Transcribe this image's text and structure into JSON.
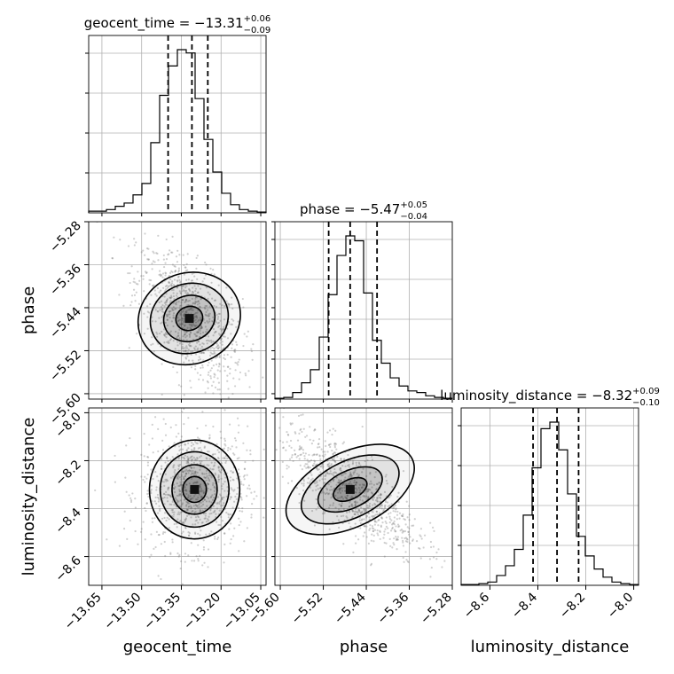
{
  "chart_data": {
    "type": "corner",
    "parameters": [
      {
        "name": "geocent_time",
        "label": "geocent_time",
        "title": "geocent_time = −13.31",
        "median": -13.31,
        "err_plus": "+0.06",
        "err_minus": "−0.09",
        "quantiles": [
          -13.4,
          -13.31,
          -13.25
        ],
        "range": [
          -13.7,
          -13.03
        ],
        "ticks": [
          -13.65,
          -13.5,
          -13.35,
          -13.2,
          -13.05
        ],
        "tick_labels": [
          "−13.65",
          "−13.50",
          "−13.35",
          "−13.20",
          "−13.05"
        ],
        "hist": [
          0.01,
          0.01,
          0.02,
          0.04,
          0.06,
          0.11,
          0.18,
          0.43,
          0.72,
          0.9,
          1.0,
          0.98,
          0.7,
          0.45,
          0.25,
          0.12,
          0.05,
          0.02,
          0.01,
          0.005
        ]
      },
      {
        "name": "phase",
        "label": "phase",
        "title": "phase = −5.47",
        "median": -5.47,
        "err_plus": "+0.05",
        "err_minus": "−0.04",
        "quantiles": [
          -5.51,
          -5.47,
          -5.42
        ],
        "range": [
          -5.61,
          -5.28
        ],
        "ticks": [
          -5.6,
          -5.52,
          -5.44,
          -5.36,
          -5.28
        ],
        "tick_labels": [
          "−5.60",
          "−5.52",
          "−5.44",
          "−5.36",
          "−5.28"
        ],
        "hist": [
          0.005,
          0.01,
          0.04,
          0.1,
          0.18,
          0.38,
          0.64,
          0.88,
          1.0,
          0.97,
          0.65,
          0.36,
          0.22,
          0.13,
          0.08,
          0.05,
          0.04,
          0.02,
          0.01,
          0.005
        ]
      },
      {
        "name": "luminosity_distance",
        "label": "luminosity_distance",
        "title": "luminosity_distance = −8.32",
        "median": -8.32,
        "err_plus": "+0.09",
        "err_minus": "−0.10",
        "quantiles": [
          -8.42,
          -8.32,
          -8.23
        ],
        "range": [
          -8.72,
          -7.98
        ],
        "ticks": [
          -8.6,
          -8.4,
          -8.2,
          -8.0
        ],
        "tick_labels": [
          "−8.6",
          "−8.4",
          "−8.2",
          "−8.0"
        ],
        "hist": [
          0.005,
          0.005,
          0.01,
          0.02,
          0.06,
          0.12,
          0.22,
          0.43,
          0.72,
          0.96,
          1.0,
          0.83,
          0.56,
          0.3,
          0.18,
          0.1,
          0.05,
          0.02,
          0.01,
          0.005
        ]
      }
    ],
    "joint": [
      {
        "x": "geocent_time",
        "y": "phase",
        "mean": [
          -13.32,
          -5.46
        ],
        "sd": [
          0.08,
          0.05
        ],
        "rho": -0.55
      },
      {
        "x": "geocent_time",
        "y": "luminosity_distance",
        "mean": [
          -13.3,
          -8.32
        ],
        "sd": [
          0.08,
          0.1
        ],
        "rho": 0.05
      },
      {
        "x": "phase",
        "y": "luminosity_distance",
        "mean": [
          -5.47,
          -8.32
        ],
        "sd": [
          0.05,
          0.1
        ],
        "rho": -0.75
      }
    ],
    "grid": true,
    "quantile_style": "dashed"
  }
}
